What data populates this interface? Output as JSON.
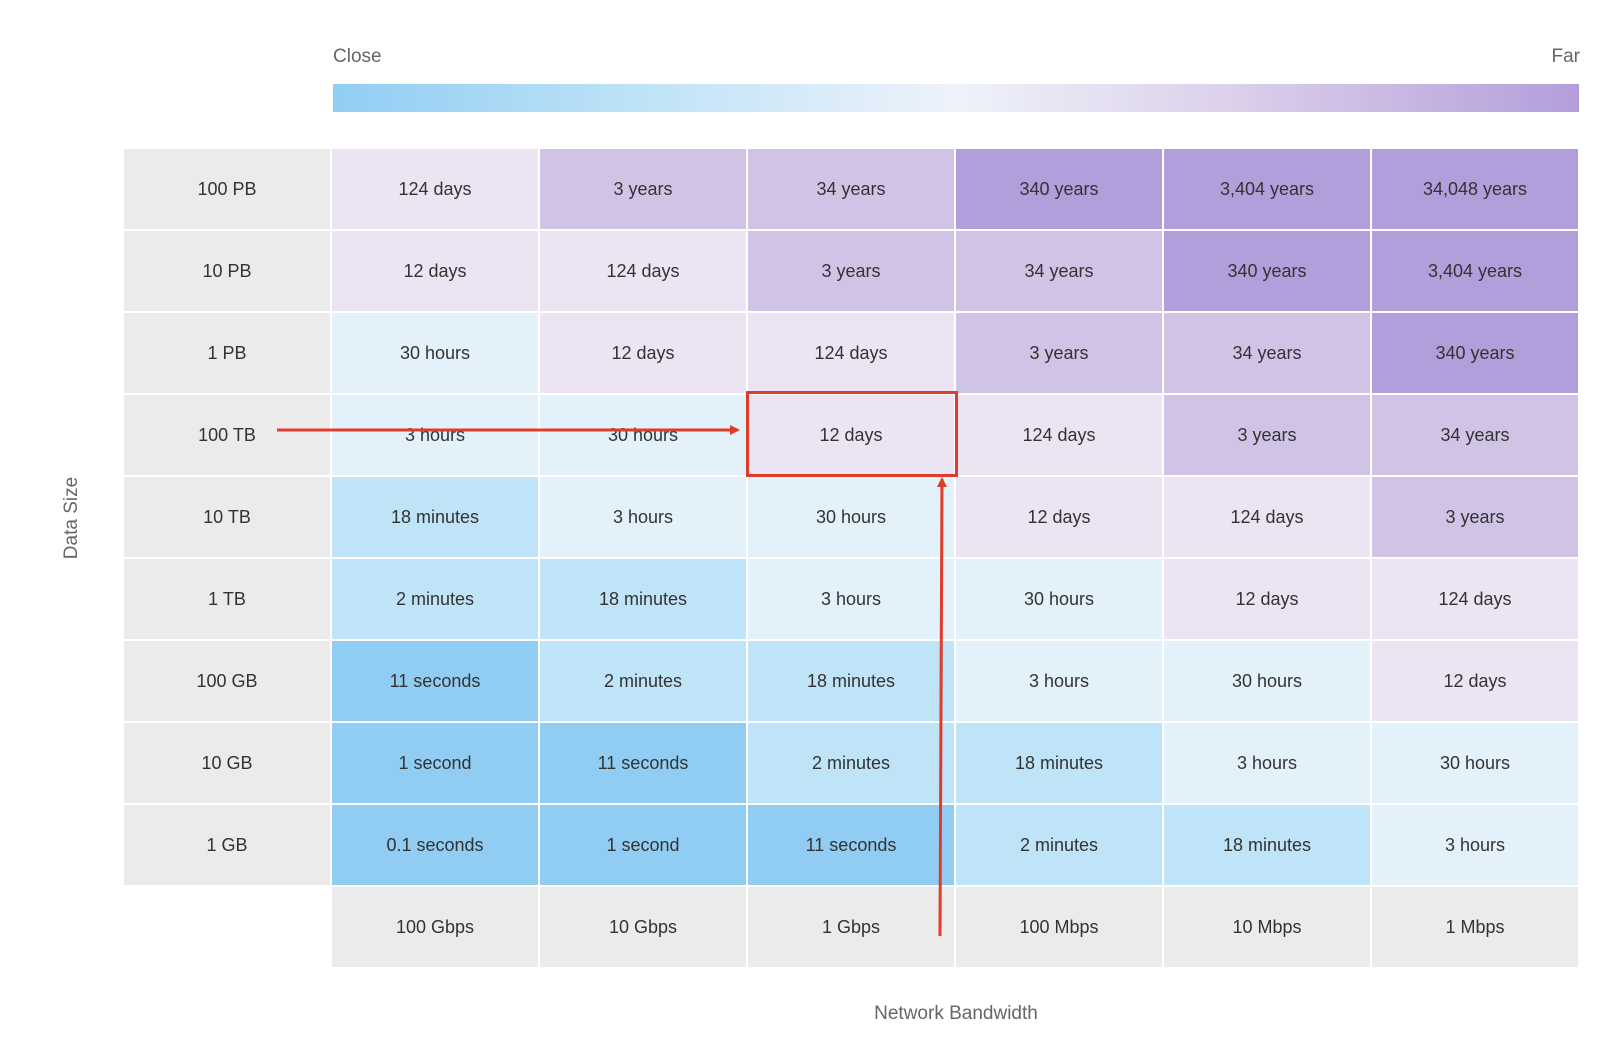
{
  "chart_data": {
    "type": "heatmap",
    "legend": {
      "low_label": "Close",
      "high_label": "Far"
    },
    "xlabel": "Network Bandwidth",
    "ylabel": "Data Size",
    "x_categories": [
      "100 Gbps",
      "10 Gbps",
      "1 Gbps",
      "100 Mbps",
      "10 Mbps",
      "1 Mbps"
    ],
    "y_categories": [
      "100 PB",
      "10 PB",
      "1 PB",
      "100 TB",
      "10 TB",
      "1 TB",
      "100 GB",
      "10 GB",
      "1 GB"
    ],
    "cells": [
      [
        "124 days",
        "3 years",
        "34 years",
        "340 years",
        "3,404 years",
        "34,048 years"
      ],
      [
        "12 days",
        "124 days",
        "3 years",
        "34 years",
        "340 years",
        "3,404 years"
      ],
      [
        "30 hours",
        "12 days",
        "124 days",
        "3 years",
        "34 years",
        "340 years"
      ],
      [
        "3 hours",
        "30 hours",
        "12 days",
        "124 days",
        "3 years",
        "34 years"
      ],
      [
        "18 minutes",
        "3 hours",
        "30 hours",
        "12 days",
        "124 days",
        "3 years"
      ],
      [
        "2 minutes",
        "18 minutes",
        "3 hours",
        "30 hours",
        "12 days",
        "124 days"
      ],
      [
        "11 seconds",
        "2 minutes",
        "18 minutes",
        "3 hours",
        "30 hours",
        "12 days"
      ],
      [
        "1 second",
        "11 seconds",
        "2 minutes",
        "18 minutes",
        "3 hours",
        "30 hours"
      ],
      [
        "0.1 seconds",
        "1 second",
        "11 seconds",
        "2 minutes",
        "18 minutes",
        "3 hours"
      ]
    ],
    "level_colors": {
      "seconds": "#91cdf3",
      "minutes": "#bfe3f7",
      "hours": "#e3f1fb",
      "days": "#ebe5f3",
      "years_low": "#d0c3e6",
      "years_high": "#b19edb"
    },
    "highlighted_cell": {
      "row": "100 TB",
      "column": "1 Gbps",
      "value": "12 days"
    },
    "annotation_color": "#e03c2c"
  }
}
